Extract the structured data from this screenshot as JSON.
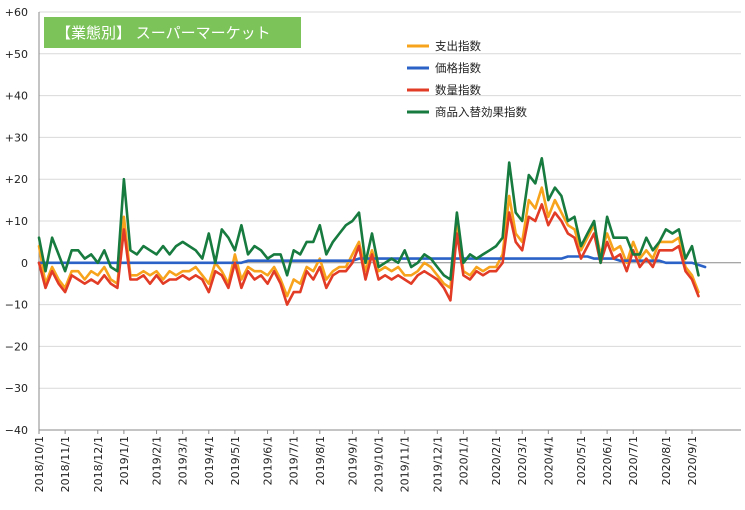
{
  "chart_data": {
    "type": "line",
    "title": "【業態別】 スーパーマーケット",
    "title_bg_color": "#7cc35a",
    "ylim": [
      -40,
      60
    ],
    "yticks": [
      60,
      50,
      40,
      30,
      20,
      10,
      0,
      -10,
      -20,
      -30,
      -40
    ],
    "ytick_labels": [
      "+60",
      "+50",
      "+40",
      "+30",
      "+20",
      "+10",
      "0",
      "−10",
      "−20",
      "−30",
      "−40"
    ],
    "xtick_labels": [
      "2018/10/1",
      "2018/11/1",
      "2018/12/1",
      "2019/1/1",
      "2019/2/1",
      "2019/3/1",
      "2019/4/1",
      "2019/5/1",
      "2019/6/1",
      "2019/7/1",
      "2019/8/1",
      "2019/9/1",
      "2019/10/1",
      "2019/11/1",
      "2019/12/1",
      "2020/1/1",
      "2020/2/1",
      "2020/3/1",
      "2020/4/1",
      "2020/5/1",
      "2020/6/1",
      "2020/7/1",
      "2020/8/1",
      "2020/9/1"
    ],
    "xtick_week_index": [
      0,
      4,
      9,
      13,
      18,
      22,
      26,
      30,
      35,
      39,
      43,
      48,
      52,
      56,
      61,
      65,
      70,
      74,
      78,
      83,
      87,
      91,
      96,
      100
    ],
    "grid": "horizontal",
    "legend_position": "top-center",
    "series": [
      {
        "name": "支出指数",
        "color": "#f7a31c",
        "values": [
          4,
          -5,
          -1,
          -4,
          -6,
          -2,
          -2,
          -4,
          -2,
          -3,
          -1,
          -4,
          -5,
          11,
          -3,
          -3,
          -2,
          -3,
          -2,
          -4,
          -2,
          -3,
          -2,
          -2,
          -1,
          -3,
          -5,
          0,
          -2,
          -5,
          2,
          -4,
          -1,
          -2,
          -2,
          -3,
          -1,
          -4,
          -8,
          -4,
          -5,
          -1,
          -2,
          1,
          -4,
          -2,
          -1,
          -1,
          2,
          5,
          -2,
          3,
          -2,
          -1,
          -2,
          -1,
          -3,
          -3,
          -2,
          0,
          -1,
          -3,
          -5,
          -6,
          9,
          -2,
          -3,
          -1,
          -2,
          -1,
          -1,
          2,
          16,
          7,
          5,
          15,
          13,
          18,
          11,
          15,
          12,
          9,
          8,
          3,
          6,
          9,
          2,
          7,
          3,
          4,
          0,
          5,
          1,
          3,
          1,
          5,
          5,
          5,
          6,
          -1,
          -3,
          -7
        ],
        "first_week_index": 0
      },
      {
        "name": "価格指数",
        "color": "#2a62c7",
        "values": [
          0,
          0,
          0,
          0,
          0,
          0,
          0,
          0,
          0,
          0,
          0,
          0,
          0,
          0,
          0,
          0,
          0,
          0,
          0,
          0,
          0,
          0,
          0,
          0,
          0,
          0,
          0,
          0,
          0,
          0,
          0,
          0,
          0.5,
          0.5,
          0.5,
          0.5,
          0.5,
          0.5,
          0.5,
          0.5,
          0.5,
          0.5,
          0.5,
          0.5,
          0.5,
          0.5,
          0.5,
          0.5,
          0.5,
          1,
          1,
          1,
          1,
          1,
          1,
          1,
          1,
          1,
          1,
          1,
          1,
          1,
          1,
          1,
          1,
          1,
          1,
          1,
          1,
          1,
          1,
          1,
          1,
          1,
          1,
          1,
          1,
          1,
          1,
          1,
          1,
          1.5,
          1.5,
          1.5,
          1.5,
          1,
          1,
          1,
          1,
          0.5,
          0.5,
          0.5,
          0.5,
          0.5,
          0.5,
          0.5,
          0,
          0,
          0,
          0,
          0,
          -0.5,
          -1
        ],
        "first_week_index": 0
      },
      {
        "name": "数量指数",
        "color": "#e23b26",
        "values": [
          0,
          -6,
          -2,
          -5,
          -7,
          -3,
          -4,
          -5,
          -4,
          -5,
          -3,
          -5,
          -6,
          8,
          -4,
          -4,
          -3,
          -5,
          -3,
          -5,
          -4,
          -4,
          -3,
          -4,
          -3,
          -4,
          -7,
          -2,
          -3,
          -6,
          0,
          -6,
          -2,
          -4,
          -3,
          -5,
          -2,
          -5,
          -10,
          -7,
          -7,
          -2,
          -4,
          -1,
          -6,
          -3,
          -2,
          -2,
          0,
          4,
          -4,
          2,
          -4,
          -3,
          -4,
          -3,
          -4,
          -5,
          -3,
          -2,
          -3,
          -4,
          -6,
          -9,
          7,
          -3,
          -4,
          -2,
          -3,
          -2,
          -2,
          0,
          12,
          5,
          3,
          11,
          10,
          14,
          9,
          12,
          10,
          7,
          6,
          1,
          4,
          7,
          0,
          5,
          1,
          2,
          -2,
          3,
          -1,
          1,
          -1,
          3,
          3,
          3,
          4,
          -2,
          -4,
          -8
        ],
        "first_week_index": 0
      },
      {
        "name": "商品入替効果指数",
        "color": "#177a3f",
        "values": [
          6,
          -2,
          6,
          2,
          -2,
          3,
          3,
          1,
          2,
          0,
          3,
          -1,
          -2,
          20,
          3,
          2,
          4,
          3,
          2,
          4,
          2,
          4,
          5,
          4,
          3,
          1,
          7,
          0,
          8,
          6,
          3,
          9,
          2,
          4,
          3,
          1,
          2,
          2,
          -3,
          3,
          2,
          5,
          5,
          9,
          2,
          5,
          7,
          9,
          10,
          12,
          0,
          7,
          -1,
          0,
          1,
          0,
          3,
          -1,
          0,
          2,
          1,
          -1,
          -3,
          -4,
          12,
          0,
          2,
          1,
          2,
          3,
          4,
          6,
          24,
          12,
          10,
          21,
          19,
          25,
          15,
          18,
          16,
          10,
          11,
          4,
          7,
          10,
          0,
          11,
          6,
          6,
          6,
          2,
          2,
          6,
          3,
          5,
          8,
          7,
          8,
          1,
          4,
          -3
        ],
        "first_week_index": 0
      }
    ]
  }
}
